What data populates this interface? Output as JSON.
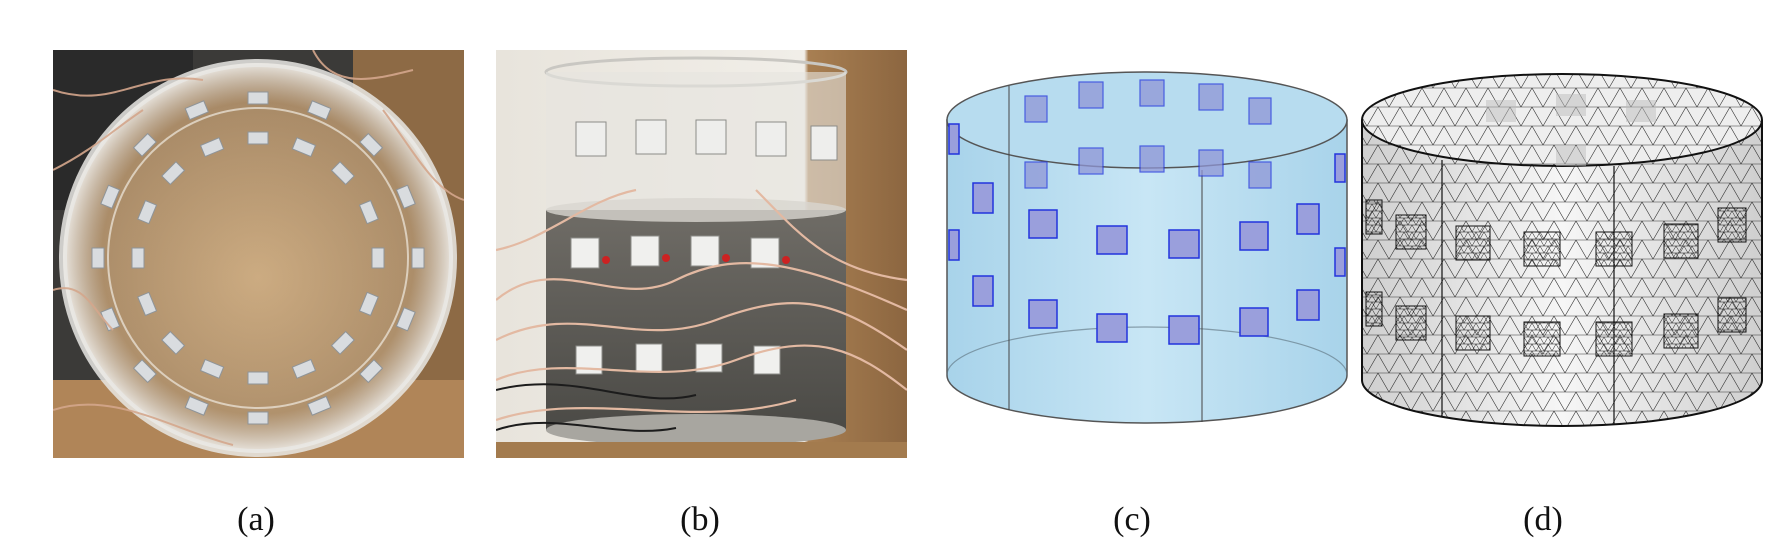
{
  "figure": {
    "panels": [
      {
        "id": "a",
        "label": "(a)",
        "content": "photo-top-view-electrode-tank"
      },
      {
        "id": "b",
        "label": "(b)",
        "content": "photo-side-view-electrode-tank"
      },
      {
        "id": "c",
        "label": "(c)",
        "content": "cad-model-cylinder-electrodes"
      },
      {
        "id": "d",
        "label": "(d)",
        "content": "finite-element-mesh"
      }
    ]
  },
  "colors": {
    "tank_fill": "#bfe1f2",
    "electrode_fill": "#9a9fdc",
    "electrode_stroke": "#2233dd",
    "mesh_line": "#222222",
    "wood": "#b3895a"
  }
}
